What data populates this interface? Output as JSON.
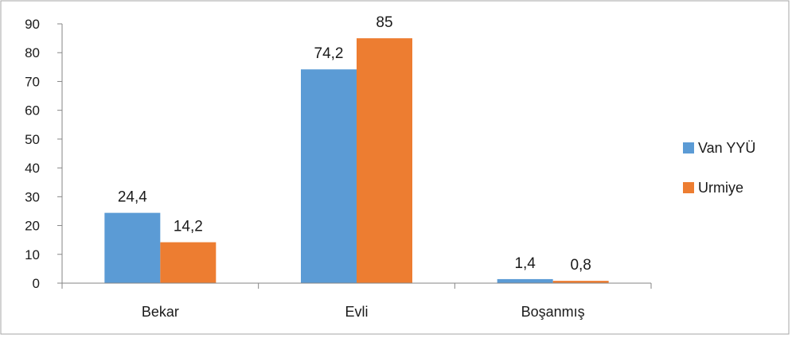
{
  "chart_data": {
    "type": "bar",
    "title": "",
    "xlabel": "",
    "ylabel": "",
    "categories": [
      "Bekar",
      "Evli",
      "Boşanmış"
    ],
    "series": [
      {
        "name": "Van YYÜ",
        "values": [
          24.4,
          74.2,
          1.4
        ],
        "labels": [
          "24,4",
          "74,2",
          "1,4"
        ],
        "color": "#5b9bd5"
      },
      {
        "name": "Urmiye",
        "values": [
          14.2,
          85,
          0.8
        ],
        "labels": [
          "14,2",
          "85",
          "0,8"
        ],
        "color": "#ed7d31"
      }
    ],
    "ylim": [
      0,
      90
    ],
    "yticks": [
      0,
      10,
      20,
      30,
      40,
      50,
      60,
      70,
      80,
      90
    ],
    "yticklabels": [
      "0",
      "10",
      "20",
      "30",
      "40",
      "50",
      "60",
      "70",
      "80",
      "90"
    ],
    "grid": false,
    "legend": "right"
  }
}
